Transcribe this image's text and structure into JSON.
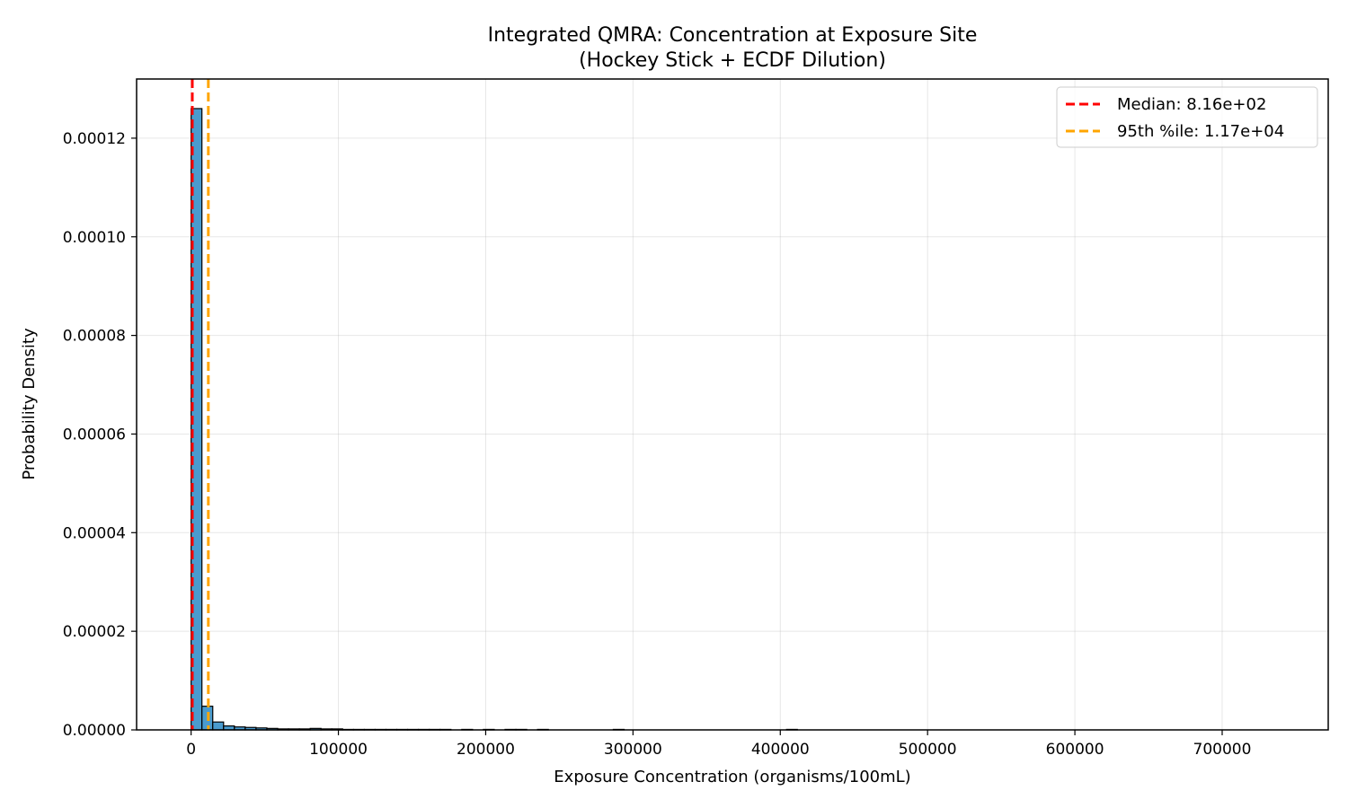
{
  "chart_data": {
    "type": "bar",
    "title_lines": [
      "Integrated QMRA: Concentration at Exposure Site",
      "(Hockey Stick + ECDF Dilution)"
    ],
    "xlabel": "Exposure Concentration (organisms/100mL)",
    "ylabel": "Probability Density",
    "xlim": [
      -37000,
      772000
    ],
    "ylim": [
      0,
      0.000132
    ],
    "xticks": [
      0,
      100000,
      200000,
      300000,
      400000,
      500000,
      600000,
      700000
    ],
    "xtick_labels": [
      "0",
      "100000",
      "200000",
      "300000",
      "400000",
      "500000",
      "600000",
      "700000"
    ],
    "yticks": [
      0,
      2e-05,
      4e-05,
      6e-05,
      8e-05,
      0.0001,
      0.00012
    ],
    "ytick_labels": [
      "0.00000",
      "0.00002",
      "0.00004",
      "0.00006",
      "0.00008",
      "0.00010",
      "0.00012"
    ],
    "grid": true,
    "bar_color": "#4a9bce",
    "bin_width": 7350,
    "bins_start": 0,
    "values": [
      0.000126,
      4.8e-06,
      1.6e-06,
      8e-07,
      6e-07,
      5e-07,
      4e-07,
      3e-07,
      2e-07,
      2e-07,
      2e-07,
      3e-07,
      2e-07,
      2e-07,
      1e-07,
      1e-07,
      1e-07,
      1e-07,
      1e-07,
      1e-07,
      1e-07,
      1e-07,
      1e-07,
      1e-07,
      0,
      1e-07,
      0,
      1e-07,
      0,
      1e-07,
      1e-07,
      0,
      1e-07,
      0,
      0,
      0,
      0,
      0,
      0,
      1e-07,
      0,
      0,
      0,
      0,
      0,
      0,
      0,
      0,
      0,
      0,
      0,
      0,
      0,
      0,
      0,
      1e-07,
      0,
      0,
      0,
      0,
      0,
      0,
      0,
      0,
      0,
      0,
      0,
      0,
      0,
      0,
      0,
      0,
      0,
      0,
      0,
      0,
      0,
      0,
      0,
      0,
      0,
      0,
      0,
      0,
      0,
      0,
      0,
      0,
      0,
      0,
      0,
      0,
      0,
      0,
      0,
      0
    ],
    "reference_lines": [
      {
        "label": "Median: 8.16e+02",
        "x": 816,
        "color": "#ff0000"
      },
      {
        "label": "95th %ile: 1.17e+04",
        "x": 11700,
        "color": "#ffa500"
      }
    ],
    "legend_position": "top-right"
  }
}
